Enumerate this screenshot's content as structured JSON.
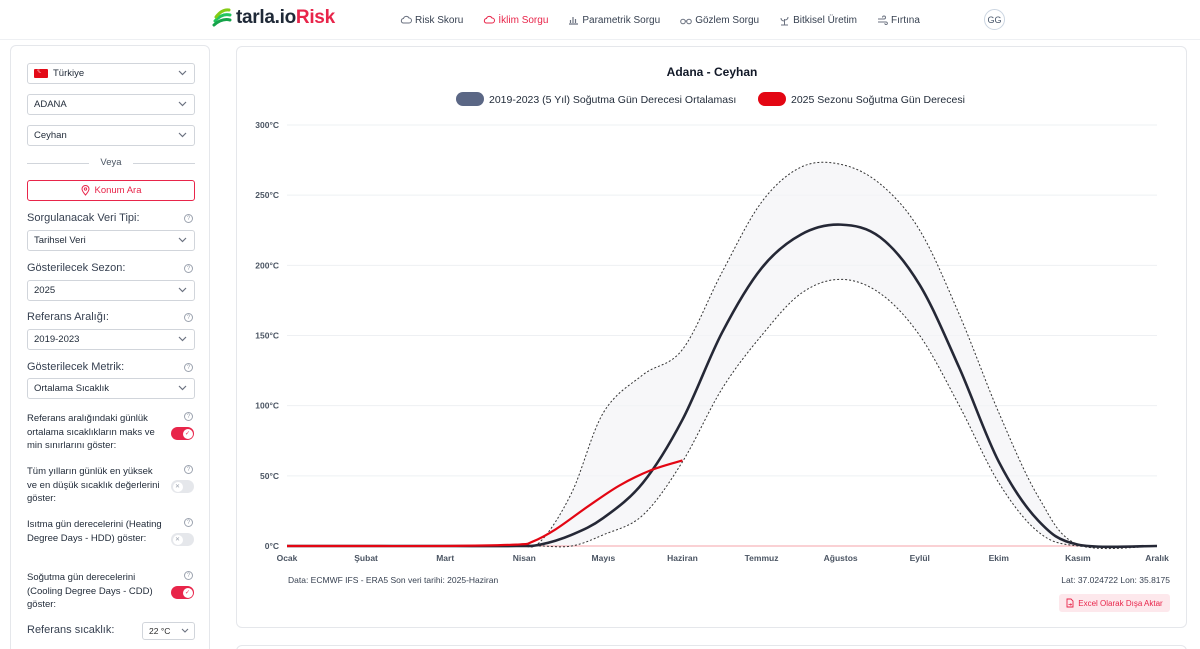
{
  "app": {
    "logo_main": "tarla.io",
    "logo_accent": "Risk",
    "avatar": "GG",
    "brand_color": "#e8254a"
  },
  "nav": [
    {
      "label": "Risk Skoru",
      "icon": "cloud-icon",
      "active": false
    },
    {
      "label": "İklim Sorgu",
      "icon": "cloud-icon",
      "active": true
    },
    {
      "label": "Parametrik Sorgu",
      "icon": "bar-chart-icon",
      "active": false
    },
    {
      "label": "Gözlem Sorgu",
      "icon": "binoculars-icon",
      "active": false
    },
    {
      "label": "Bitkisel Üretim",
      "icon": "plant-icon",
      "active": false
    },
    {
      "label": "Fırtına",
      "icon": "wind-icon",
      "active": false
    }
  ],
  "sidebar": {
    "country": "Türkiye",
    "province": "ADANA",
    "district": "Ceyhan",
    "divider": "Veya",
    "location_button": "Konum Ara",
    "data_type_label": "Sorgulanacak Veri Tipi:",
    "data_type_value": "Tarihsel Veri",
    "season_label": "Gösterilecek Sezon:",
    "season_value": "2025",
    "ref_range_label": "Referans Aralığı:",
    "ref_range_value": "2019-2023",
    "metric_label": "Gösterilecek Metrik:",
    "metric_value": "Ortalama Sıcaklık",
    "toggles": [
      {
        "label": "Referans aralığındaki günlük ortalama sıcaklıkların maks ve min sınırlarını göster:",
        "on": true
      },
      {
        "label": "Tüm yılların günlük en yüksek ve en düşük sıcaklık değerlerini göster:",
        "on": false
      },
      {
        "label": "Isıtma gün derecelerini (Heating Degree Days - HDD) göster:",
        "on": false
      },
      {
        "label": "Soğutma gün derecelerini (Cooling Degree Days - CDD) göster:",
        "on": true
      }
    ],
    "ref_temp_label": "Referans sıcaklık:",
    "ref_temp_value": "22 °C"
  },
  "footer": {
    "source": "Data: ECMWF IFS - ERA5  Son veri tarihi: 2025-Haziran",
    "coords": "Lat: 37.024722  Lon: 35.8175",
    "export_button": "Excel Olarak Dışa Aktar"
  },
  "chart_data": {
    "type": "line",
    "title": "Adana - Ceyhan",
    "ylabel": "",
    "xlabel": "",
    "ylim": [
      0,
      300
    ],
    "y_ticks": [
      "0°C",
      "50°C",
      "100°C",
      "150°C",
      "200°C",
      "250°C",
      "300°C"
    ],
    "categories": [
      "Ocak",
      "Şubat",
      "Mart",
      "Nisan",
      "Mayıs",
      "Haziran",
      "Temmuz",
      "Ağustos",
      "Eylül",
      "Ekim",
      "Kasım",
      "Aralık"
    ],
    "legend": [
      {
        "label": "2019-2023 (5 Yıl) Soğutma Gün Derecesi Ortalaması",
        "color": "#5b6785"
      },
      {
        "label": "2025 Sezonu Soğutma Gün Derecesi",
        "color": "#e30613"
      }
    ],
    "series": [
      {
        "name": "2019-2023 (5 Yıl) Soğutma Gün Derecesi Ortalaması",
        "color": "#252836",
        "x": [
          0,
          1,
          2,
          2.9,
          3.2,
          3.6,
          4.0,
          4.5,
          5.0,
          5.5,
          6.0,
          6.5,
          7.0,
          7.5,
          8.0,
          8.5,
          9.0,
          9.5,
          10.0,
          11.0
        ],
        "values": [
          0,
          0,
          0,
          0,
          1,
          8,
          20,
          45,
          90,
          152,
          198,
          222,
          229,
          220,
          186,
          127,
          60,
          18,
          1,
          0
        ]
      },
      {
        "name": "Referans maks",
        "color": "#333333",
        "dash": true,
        "x": [
          0,
          1,
          2,
          2.9,
          3.2,
          3.6,
          4.0,
          4.5,
          5.0,
          5.5,
          6.0,
          6.5,
          7.0,
          7.5,
          8.0,
          8.5,
          9.0,
          9.5,
          10.0,
          11.0
        ],
        "values": [
          0,
          0,
          0,
          0,
          3,
          38,
          95,
          122,
          140,
          195,
          245,
          270,
          272,
          258,
          225,
          165,
          95,
          35,
          1,
          0
        ]
      },
      {
        "name": "Referans min",
        "color": "#333333",
        "dash": true,
        "x": [
          0,
          1,
          2,
          2.9,
          3.2,
          3.6,
          4.0,
          4.5,
          5.0,
          5.5,
          6.0,
          6.5,
          7.0,
          7.5,
          8.0,
          8.5,
          9.0,
          9.5,
          10.0,
          11.0
        ],
        "values": [
          0,
          0,
          0,
          0,
          0,
          0,
          8,
          22,
          60,
          112,
          150,
          180,
          190,
          180,
          150,
          100,
          45,
          10,
          0,
          0
        ]
      },
      {
        "name": "2025 Sezonu Soğutma Gün Derecesi",
        "color": "#e30613",
        "x": [
          0,
          1,
          2,
          2.9,
          3.1,
          3.4,
          3.8,
          4.2,
          4.6,
          5.0
        ],
        "values": [
          0,
          0,
          0,
          1,
          3,
          12,
          28,
          43,
          54,
          61
        ]
      }
    ]
  }
}
